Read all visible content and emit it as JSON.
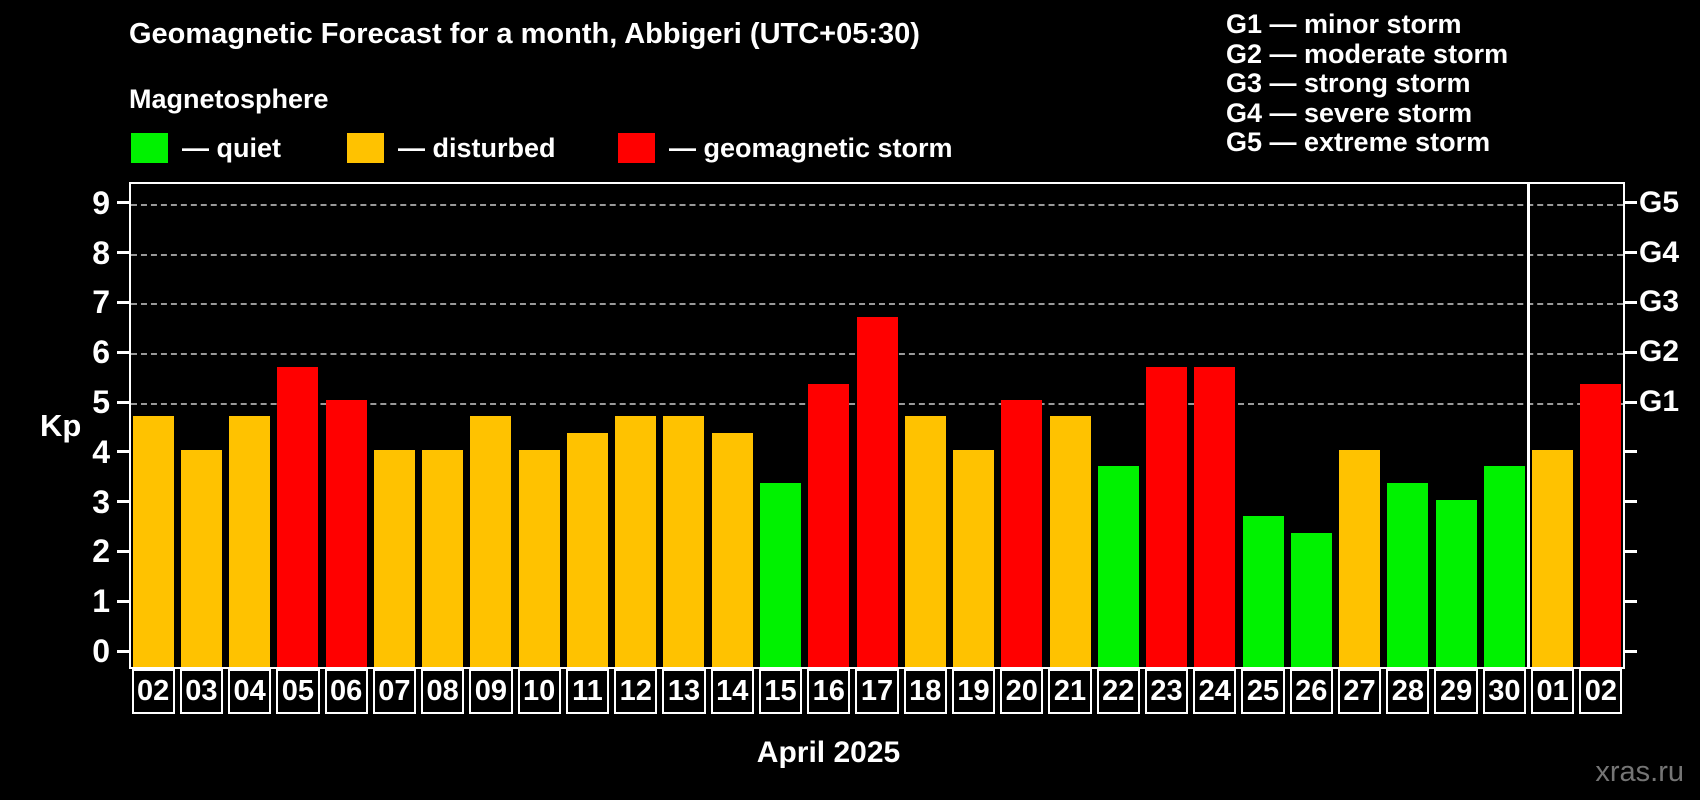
{
  "title": "Geomagnetic Forecast for a month, Abbigeri (UTC+05:30)",
  "subtitle": "Magnetosphere",
  "legend": {
    "items": [
      {
        "status": "quiet",
        "label": "— quiet",
        "color": "#00f200"
      },
      {
        "status": "disturbed",
        "label": "— disturbed",
        "color": "#ffc200"
      },
      {
        "status": "storm",
        "label": "— geomagnetic storm",
        "color": "#ff0000"
      }
    ]
  },
  "g_scale_legend": [
    "G1 — minor storm",
    "G2 — moderate storm",
    "G3 — strong storm",
    "G4 — severe storm",
    "G5 — extreme storm"
  ],
  "axis": {
    "y_label": "Kp",
    "y_ticks": [
      "0",
      "1",
      "2",
      "3",
      "4",
      "5",
      "6",
      "7",
      "8",
      "9"
    ],
    "right_labels": [
      {
        "kp": 5,
        "label": "G1"
      },
      {
        "kp": 6,
        "label": "G2"
      },
      {
        "kp": 7,
        "label": "G3"
      },
      {
        "kp": 8,
        "label": "G4"
      },
      {
        "kp": 9,
        "label": "G5"
      }
    ]
  },
  "chart_data": {
    "type": "bar",
    "title": "Geomagnetic Forecast for a month, Abbigeri (UTC+05:30)",
    "ylabel": "Kp",
    "ylim": [
      -0.36,
      9.44
    ],
    "gridlines_kp": [
      5,
      6,
      7,
      8,
      9
    ],
    "categories": [
      "02",
      "03",
      "04",
      "05",
      "06",
      "07",
      "08",
      "09",
      "10",
      "11",
      "12",
      "13",
      "14",
      "15",
      "16",
      "17",
      "18",
      "19",
      "20",
      "21",
      "22",
      "23",
      "24",
      "25",
      "26",
      "27",
      "28",
      "29",
      "30",
      "01",
      "02"
    ],
    "values": [
      4.67,
      4.0,
      4.67,
      5.67,
      5.0,
      4.0,
      4.0,
      4.67,
      4.0,
      4.33,
      4.67,
      4.67,
      4.33,
      3.33,
      5.33,
      6.67,
      4.67,
      4.0,
      5.0,
      4.67,
      3.67,
      5.67,
      5.67,
      2.67,
      2.33,
      4.0,
      3.33,
      3.0,
      3.67,
      4.0,
      5.33
    ],
    "statuses": [
      "disturbed",
      "disturbed",
      "disturbed",
      "storm",
      "storm",
      "disturbed",
      "disturbed",
      "disturbed",
      "disturbed",
      "disturbed",
      "disturbed",
      "disturbed",
      "disturbed",
      "quiet",
      "storm",
      "storm",
      "disturbed",
      "disturbed",
      "storm",
      "disturbed",
      "quiet",
      "storm",
      "storm",
      "quiet",
      "quiet",
      "disturbed",
      "quiet",
      "quiet",
      "quiet",
      "disturbed",
      "storm"
    ],
    "month_separator_after_index": 28
  },
  "month_label": "April 2025",
  "watermark": "xras.ru"
}
